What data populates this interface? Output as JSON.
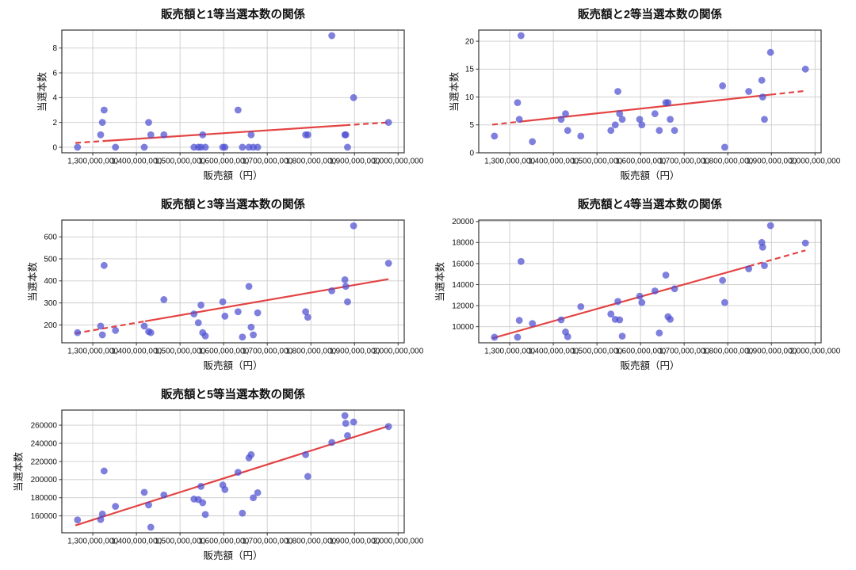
{
  "figure": {
    "background": "#ffffff"
  },
  "style": {
    "scatter_color": "#4d4fd1",
    "scatter_opacity": 0.72,
    "trend_color": "#e23434",
    "grid_color": "#cccccc",
    "spine_color": "#333333",
    "tick_color": "#333333",
    "text_color": "#111111"
  },
  "chart_data": [
    {
      "type": "scatter",
      "title": "販売額と1等当選本数の関係",
      "xlabel": "販売額（円）",
      "ylabel": "当選本数",
      "xlim": [
        1229000000,
        2014000000
      ],
      "ylim": [
        -0.45,
        9.45
      ],
      "x_ticks": [
        1300000000,
        1400000000,
        1500000000,
        1600000000,
        1700000000,
        1800000000,
        1900000000,
        2000000000
      ],
      "x_tick_labels": [
        "1,300,000,000",
        "1,400,000,000",
        "1,500,000,000",
        "1,600,000,000",
        "1,700,000,000",
        "1,800,000,000",
        "1,900,000,000",
        "2,000,000,000"
      ],
      "y_ticks": [
        0,
        2,
        4,
        6,
        8
      ],
      "y_tick_labels": [
        "0",
        "2",
        "4",
        "6",
        "8"
      ],
      "x": [
        1265000000,
        1318000000,
        1322000000,
        1326000000,
        1352000000,
        1418000000,
        1428000000,
        1433000000,
        1463000000,
        1532000000,
        1542000000,
        1548000000,
        1552000000,
        1558000000,
        1598000000,
        1603000000,
        1633000000,
        1643000000,
        1658000000,
        1663000000,
        1668000000,
        1678000000,
        1788000000,
        1793000000,
        1848000000,
        1878000000,
        1880000000,
        1884000000,
        1898000000,
        1978000000
      ],
      "y": [
        0,
        1,
        2,
        3,
        0,
        0,
        2,
        1,
        1,
        0,
        0,
        0,
        1,
        0,
        0,
        0,
        3,
        0,
        0,
        1,
        0,
        0,
        1,
        1,
        9,
        1,
        1,
        0,
        4,
        2
      ],
      "trend": {
        "x_start": 1260000000,
        "x_end": 1978000000,
        "y_start": 0.35,
        "y_end": 2.0,
        "segments": [
          {
            "from": 1260000000,
            "to": 1332000000,
            "style": "dashed"
          },
          {
            "from": 1332000000,
            "to": 1878000000,
            "style": "solid"
          },
          {
            "from": 1878000000,
            "to": 1978000000,
            "style": "dashed"
          }
        ]
      }
    },
    {
      "type": "scatter",
      "title": "販売額と2等当選本数の関係",
      "xlabel": "販売額（円）",
      "ylabel": "当選本数",
      "xlim": [
        1229000000,
        2014000000
      ],
      "ylim": [
        0,
        22
      ],
      "x_ticks": [
        1300000000,
        1400000000,
        1500000000,
        1600000000,
        1700000000,
        1800000000,
        1900000000,
        2000000000
      ],
      "x_tick_labels": [
        "1,300,000,000",
        "1,400,000,000",
        "1,500,000,000",
        "1,600,000,000",
        "1,700,000,000",
        "1,800,000,000",
        "1,900,000,000",
        "2,000,000,000"
      ],
      "y_ticks": [
        0,
        5,
        10,
        15,
        20
      ],
      "y_tick_labels": [
        "0",
        "5",
        "10",
        "15",
        "20"
      ],
      "x": [
        1265000000,
        1318000000,
        1322000000,
        1326000000,
        1352000000,
        1418000000,
        1428000000,
        1433000000,
        1463000000,
        1532000000,
        1542000000,
        1548000000,
        1552000000,
        1558000000,
        1598000000,
        1603000000,
        1633000000,
        1643000000,
        1658000000,
        1663000000,
        1668000000,
        1678000000,
        1788000000,
        1793000000,
        1848000000,
        1878000000,
        1880000000,
        1884000000,
        1898000000,
        1978000000
      ],
      "y": [
        3,
        9,
        6,
        21,
        2,
        6,
        7,
        4,
        3,
        4,
        5,
        11,
        7,
        6,
        6,
        5,
        7,
        4,
        9,
        9,
        6,
        4,
        12,
        1,
        11,
        13,
        10,
        6,
        18,
        15
      ],
      "trend": {
        "x_start": 1260000000,
        "x_end": 1978000000,
        "y_start": 5.05,
        "y_end": 11.1,
        "segments": [
          {
            "from": 1260000000,
            "to": 1332000000,
            "style": "dashed"
          },
          {
            "from": 1332000000,
            "to": 1898000000,
            "style": "solid"
          },
          {
            "from": 1898000000,
            "to": 1978000000,
            "style": "dashed"
          }
        ]
      }
    },
    {
      "type": "scatter",
      "title": "販売額と3等当選本数の関係",
      "xlabel": "販売額（円）",
      "ylabel": "当選本数",
      "xlim": [
        1229000000,
        2014000000
      ],
      "ylim": [
        119,
        676
      ],
      "x_ticks": [
        1300000000,
        1400000000,
        1500000000,
        1600000000,
        1700000000,
        1800000000,
        1900000000,
        2000000000
      ],
      "x_tick_labels": [
        "1,300,000,000",
        "1,400,000,000",
        "1,500,000,000",
        "1,600,000,000",
        "1,700,000,000",
        "1,800,000,000",
        "1,900,000,000",
        "2,000,000,000"
      ],
      "y_ticks": [
        200,
        300,
        400,
        500,
        600
      ],
      "y_tick_labels": [
        "200",
        "300",
        "400",
        "500",
        "600"
      ],
      "x": [
        1265000000,
        1318000000,
        1322000000,
        1326000000,
        1352000000,
        1418000000,
        1428000000,
        1433000000,
        1463000000,
        1532000000,
        1542000000,
        1548000000,
        1552000000,
        1558000000,
        1598000000,
        1603000000,
        1633000000,
        1643000000,
        1658000000,
        1663000000,
        1668000000,
        1678000000,
        1788000000,
        1793000000,
        1848000000,
        1878000000,
        1880000000,
        1884000000,
        1898000000,
        1978000000
      ],
      "y": [
        165,
        195,
        155,
        470,
        175,
        195,
        170,
        165,
        315,
        250,
        210,
        290,
        165,
        150,
        305,
        240,
        260,
        145,
        375,
        190,
        155,
        255,
        260,
        235,
        355,
        405,
        375,
        305,
        650,
        480
      ],
      "trend": {
        "x_start": 1260000000,
        "x_end": 1978000000,
        "y_start": 162,
        "y_end": 408,
        "segments": [
          {
            "from": 1260000000,
            "to": 1420000000,
            "style": "dashed"
          },
          {
            "from": 1420000000,
            "to": 1978000000,
            "style": "solid"
          }
        ]
      }
    },
    {
      "type": "scatter",
      "title": "販売額と4等当選本数の関係",
      "xlabel": "販売額（円）",
      "ylabel": "当選本数",
      "xlim": [
        1229000000,
        2014000000
      ],
      "ylim": [
        8470,
        20130
      ],
      "x_ticks": [
        1300000000,
        1400000000,
        1500000000,
        1600000000,
        1700000000,
        1800000000,
        1900000000,
        2000000000
      ],
      "x_tick_labels": [
        "1,300,000,000",
        "1,400,000,000",
        "1,500,000,000",
        "1,600,000,000",
        "1,700,000,000",
        "1,800,000,000",
        "1,900,000,000",
        "2,000,000,000"
      ],
      "y_ticks": [
        10000,
        12000,
        14000,
        16000,
        18000,
        20000
      ],
      "y_tick_labels": [
        "10000",
        "12000",
        "14000",
        "16000",
        "18000",
        "20000"
      ],
      "x": [
        1265000000,
        1318000000,
        1322000000,
        1326000000,
        1352000000,
        1418000000,
        1428000000,
        1433000000,
        1463000000,
        1532000000,
        1542000000,
        1548000000,
        1552000000,
        1558000000,
        1598000000,
        1603000000,
        1633000000,
        1643000000,
        1658000000,
        1663000000,
        1668000000,
        1678000000,
        1788000000,
        1793000000,
        1848000000,
        1878000000,
        1880000000,
        1884000000,
        1898000000,
        1978000000
      ],
      "y": [
        9000,
        9000,
        10600,
        16200,
        10300,
        10650,
        9500,
        9050,
        11900,
        11200,
        10700,
        12400,
        10650,
        9100,
        12900,
        12300,
        13400,
        9400,
        14900,
        10950,
        10700,
        13600,
        14400,
        12300,
        15500,
        18000,
        17550,
        15800,
        19600,
        17950
      ],
      "trend": {
        "x_start": 1260000000,
        "x_end": 1978000000,
        "y_start": 8900,
        "y_end": 17250,
        "segments": [
          {
            "from": 1260000000,
            "to": 1848000000,
            "style": "solid"
          },
          {
            "from": 1848000000,
            "to": 1978000000,
            "style": "dashed"
          }
        ]
      }
    },
    {
      "type": "scatter",
      "title": "販売額と5等当選本数の関係",
      "xlabel": "販売額（円）",
      "ylabel": "当選本数",
      "xlim": [
        1229000000,
        2014000000
      ],
      "ylim": [
        141350,
        276650
      ],
      "x_ticks": [
        1300000000,
        1400000000,
        1500000000,
        1600000000,
        1700000000,
        1800000000,
        1900000000,
        2000000000
      ],
      "x_tick_labels": [
        "1,300,000,000",
        "1,400,000,000",
        "1,500,000,000",
        "1,600,000,000",
        "1,700,000,000",
        "1,800,000,000",
        "1,900,000,000",
        "2,000,000,000"
      ],
      "y_ticks": [
        160000,
        180000,
        200000,
        220000,
        240000,
        260000
      ],
      "y_tick_labels": [
        "160000",
        "180000",
        "200000",
        "220000",
        "240000",
        "260000"
      ],
      "x": [
        1265000000,
        1318000000,
        1322000000,
        1326000000,
        1352000000,
        1418000000,
        1428000000,
        1433000000,
        1463000000,
        1532000000,
        1542000000,
        1548000000,
        1552000000,
        1558000000,
        1598000000,
        1603000000,
        1633000000,
        1643000000,
        1658000000,
        1663000000,
        1668000000,
        1678000000,
        1788000000,
        1793000000,
        1848000000,
        1878000000,
        1880000000,
        1884000000,
        1898000000,
        1978000000
      ],
      "y": [
        155500,
        156000,
        162000,
        209500,
        170500,
        186000,
        172000,
        147500,
        183000,
        178500,
        178000,
        192500,
        174500,
        161500,
        194000,
        189000,
        208000,
        163000,
        224000,
        227500,
        180000,
        185500,
        227500,
        203500,
        241000,
        270500,
        262000,
        248500,
        263500,
        258500
      ],
      "trend": {
        "x_start": 1260000000,
        "x_end": 1978000000,
        "y_start": 149500,
        "y_end": 259000,
        "segments": [
          {
            "from": 1260000000,
            "to": 1978000000,
            "style": "solid"
          }
        ]
      }
    }
  ]
}
